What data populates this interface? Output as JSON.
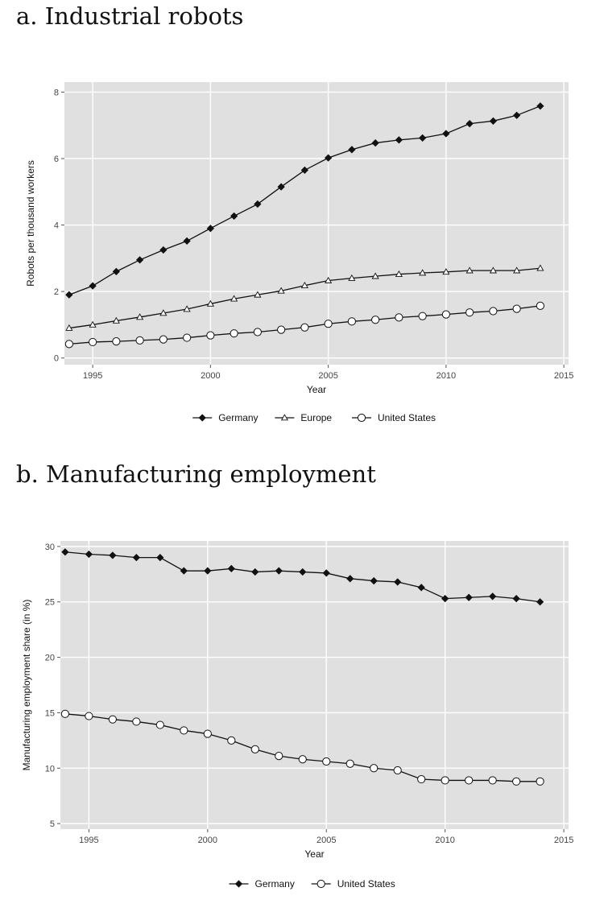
{
  "panels": [
    {
      "heading": "a. Industrial robots",
      "chart_data": {
        "type": "line",
        "title": "a. Industrial robots",
        "xlabel": "Year",
        "ylabel": "Robots per thousand workers",
        "xlim": [
          1993.8,
          2015.2
        ],
        "ylim": [
          -0.2,
          8.3
        ],
        "x_ticks": [
          1995,
          2000,
          2005,
          2010,
          2015
        ],
        "y_ticks": [
          0,
          2,
          4,
          6,
          8
        ],
        "grid": true,
        "legend": "bottom",
        "x": [
          1994,
          1995,
          1996,
          1997,
          1998,
          1999,
          2000,
          2001,
          2002,
          2003,
          2004,
          2005,
          2006,
          2007,
          2008,
          2009,
          2010,
          2011,
          2012,
          2013,
          2014
        ],
        "series": [
          {
            "name": "Germany",
            "marker": "diamond",
            "values": [
              1.9,
              2.17,
              2.6,
              2.95,
              3.25,
              3.52,
              3.9,
              4.27,
              4.63,
              5.15,
              5.65,
              6.02,
              6.27,
              6.47,
              6.56,
              6.62,
              6.75,
              7.05,
              7.13,
              7.3,
              7.58
            ]
          },
          {
            "name": "Europe",
            "marker": "triangle",
            "values": [
              0.9,
              1.0,
              1.12,
              1.23,
              1.35,
              1.47,
              1.63,
              1.78,
              1.9,
              2.02,
              2.18,
              2.33,
              2.4,
              2.46,
              2.52,
              2.56,
              2.59,
              2.63,
              2.63,
              2.63,
              2.7
            ]
          },
          {
            "name": "United States",
            "marker": "circle",
            "values": [
              0.42,
              0.48,
              0.5,
              0.53,
              0.56,
              0.61,
              0.68,
              0.74,
              0.78,
              0.85,
              0.92,
              1.03,
              1.1,
              1.15,
              1.22,
              1.26,
              1.31,
              1.37,
              1.41,
              1.48,
              1.57
            ]
          }
        ]
      }
    },
    {
      "heading": "b. Manufacturing employment",
      "chart_data": {
        "type": "line",
        "title": "b. Manufacturing employment",
        "xlabel": "Year",
        "ylabel": "Manufacturing employment share (in %)",
        "xlim": [
          1993.8,
          2015.2
        ],
        "ylim": [
          4.5,
          30.5
        ],
        "x_ticks": [
          1995,
          2000,
          2005,
          2010,
          2015
        ],
        "y_ticks": [
          5,
          10,
          15,
          20,
          25,
          30
        ],
        "grid": true,
        "legend": "bottom",
        "x": [
          1994,
          1995,
          1996,
          1997,
          1998,
          1999,
          2000,
          2001,
          2002,
          2003,
          2004,
          2005,
          2006,
          2007,
          2008,
          2009,
          2010,
          2011,
          2012,
          2013,
          2014
        ],
        "series": [
          {
            "name": "Germany",
            "marker": "diamond",
            "values": [
              29.5,
              29.3,
              29.2,
              29.0,
              29.0,
              27.8,
              27.8,
              28.0,
              27.7,
              27.8,
              27.7,
              27.6,
              27.1,
              26.9,
              26.8,
              26.3,
              25.3,
              25.4,
              25.5,
              25.3,
              25.0
            ]
          },
          {
            "name": "United States",
            "marker": "circle",
            "values": [
              14.9,
              14.7,
              14.4,
              14.2,
              13.9,
              13.4,
              13.1,
              12.5,
              11.7,
              11.1,
              10.8,
              10.6,
              10.4,
              10.0,
              9.8,
              9.0,
              8.9,
              8.9,
              8.9,
              8.8,
              8.8
            ]
          }
        ]
      }
    }
  ]
}
